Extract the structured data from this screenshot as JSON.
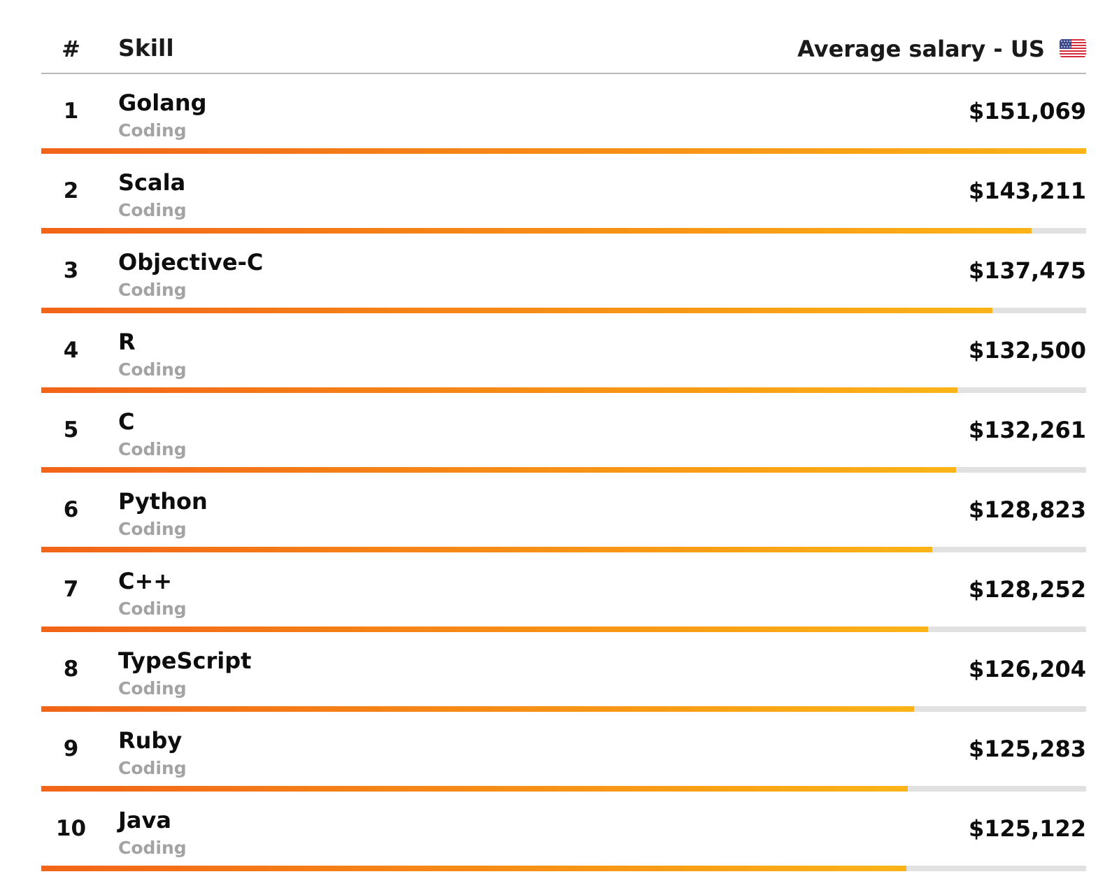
{
  "header": {
    "rank_label": "#",
    "skill_label": "Skill",
    "salary_label": "Average salary - US",
    "flag_icon": "us-flag-icon"
  },
  "colors": {
    "bar_start": "#f26418",
    "bar_end": "#fbb418",
    "track": "#e1e1e1",
    "category_text": "#a3a3a3"
  },
  "chart_data": {
    "type": "bar",
    "orientation": "horizontal",
    "title": "",
    "xlabel": "",
    "ylabel": "",
    "xlim": [
      0,
      151069
    ],
    "grid": false,
    "legend": "none",
    "rows": [
      {
        "rank": "1",
        "skill": "Golang",
        "category": "Coding",
        "salary_label": "$151,069",
        "value": 151069
      },
      {
        "rank": "2",
        "skill": "Scala",
        "category": "Coding",
        "salary_label": "$143,211",
        "value": 143211
      },
      {
        "rank": "3",
        "skill": "Objective-C",
        "category": "Coding",
        "salary_label": "$137,475",
        "value": 137475
      },
      {
        "rank": "4",
        "skill": "R",
        "category": "Coding",
        "salary_label": "$132,500",
        "value": 132500
      },
      {
        "rank": "5",
        "skill": "C",
        "category": "Coding",
        "salary_label": "$132,261",
        "value": 132261
      },
      {
        "rank": "6",
        "skill": "Python",
        "category": "Coding",
        "salary_label": "$128,823",
        "value": 128823
      },
      {
        "rank": "7",
        "skill": "C++",
        "category": "Coding",
        "salary_label": "$128,252",
        "value": 128252
      },
      {
        "rank": "8",
        "skill": "TypeScript",
        "category": "Coding",
        "salary_label": "$126,204",
        "value": 126204
      },
      {
        "rank": "9",
        "skill": "Ruby",
        "category": "Coding",
        "salary_label": "$125,283",
        "value": 125283
      },
      {
        "rank": "10",
        "skill": "Java",
        "category": "Coding",
        "salary_label": "$125,122",
        "value": 125122
      }
    ]
  }
}
